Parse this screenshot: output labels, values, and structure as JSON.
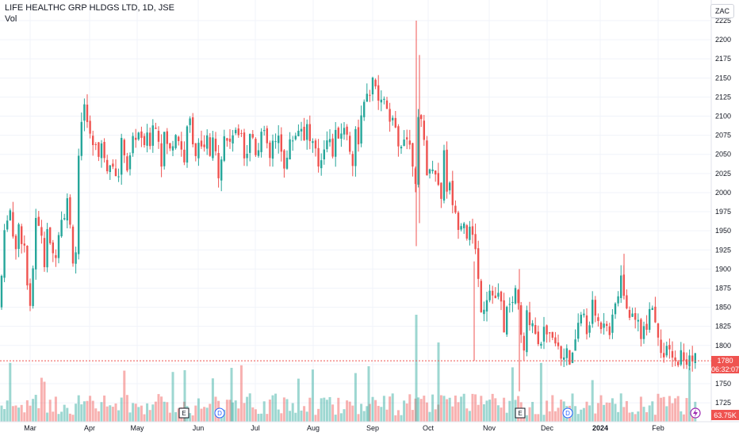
{
  "header": {
    "title": "LIFE HEALTHC GRP HLDGS LTD, 1D, JSE",
    "volume_label": "Vol"
  },
  "currency_button": "ZAC",
  "price_axis": {
    "ticks": [
      2225,
      2200,
      2175,
      2150,
      2125,
      2100,
      2075,
      2050,
      2025,
      2000,
      1975,
      1950,
      1925,
      1900,
      1875,
      1850,
      1825,
      1800,
      1775,
      1750,
      1725
    ],
    "current_price": "1780",
    "countdown": "06:32:07",
    "volume_value": "63.75K"
  },
  "time_axis": {
    "labels": [
      "Mar",
      "Apr",
      "May",
      "Jun",
      "Jul",
      "Aug",
      "Sep",
      "Oct",
      "Nov",
      "Dec",
      "2024",
      "Feb"
    ]
  },
  "events": [
    {
      "type": "earnings",
      "label": "E"
    },
    {
      "type": "dividend",
      "label": "D"
    },
    {
      "type": "earnings",
      "label": "E"
    },
    {
      "type": "dividend",
      "label": "D"
    }
  ],
  "colors": {
    "up": "#26a69a",
    "down": "#ef5350",
    "grid": "#f0f3fa",
    "text": "#131722"
  },
  "chart_data": {
    "type": "candlestick",
    "title": "LIFE HEALTHC GRP HLDGS LTD, 1D, JSE",
    "ylim": [
      1720,
      2230
    ],
    "anchors": [
      [
        0,
        1850
      ],
      [
        4,
        1930
      ],
      [
        8,
        1965
      ],
      [
        12,
        1985
      ],
      [
        16,
        1945
      ],
      [
        20,
        1930
      ],
      [
        24,
        1965
      ],
      [
        28,
        1915
      ],
      [
        32,
        1940
      ],
      [
        36,
        1850
      ],
      [
        40,
        1860
      ],
      [
        44,
        1965
      ],
      [
        48,
        1955
      ],
      [
        52,
        1950
      ],
      [
        56,
        1905
      ],
      [
        60,
        1950
      ],
      [
        64,
        1935
      ],
      [
        68,
        1905
      ],
      [
        72,
        1935
      ],
      [
        76,
        1970
      ],
      [
        80,
        1965
      ],
      [
        84,
        1995
      ],
      [
        88,
        1960
      ],
      [
        92,
        1915
      ],
      [
        96,
        1925
      ],
      [
        100,
        2070
      ],
      [
        104,
        2090
      ],
      [
        108,
        2120
      ],
      [
        112,
        2080
      ],
      [
        116,
        2060
      ],
      [
        120,
        2075
      ],
      [
        124,
        2045
      ],
      [
        128,
        2060
      ],
      [
        132,
        2050
      ],
      [
        136,
        2030
      ],
      [
        140,
        2050
      ],
      [
        144,
        2035
      ],
      [
        148,
        2000
      ],
      [
        152,
        2065
      ],
      [
        156,
        2060
      ],
      [
        160,
        2030
      ],
      [
        164,
        2045
      ],
      [
        168,
        2075
      ],
      [
        172,
        2070
      ],
      [
        176,
        2085
      ],
      [
        180,
        2050
      ],
      [
        184,
        2080
      ],
      [
        188,
        2055
      ],
      [
        192,
        2095
      ],
      [
        196,
        2085
      ],
      [
        200,
        2070
      ],
      [
        204,
        2040
      ],
      [
        208,
        2080
      ],
      [
        212,
        2060
      ],
      [
        216,
        2050
      ],
      [
        220,
        2080
      ],
      [
        224,
        2075
      ],
      [
        228,
        2060
      ],
      [
        232,
        2040
      ],
      [
        236,
        2080
      ],
      [
        240,
        2095
      ],
      [
        244,
        2065
      ],
      [
        248,
        2045
      ],
      [
        252,
        2070
      ],
      [
        256,
        2040
      ],
      [
        260,
        2080
      ],
      [
        264,
        2045
      ],
      [
        268,
        2065
      ],
      [
        272,
        2050
      ],
      [
        276,
        2025
      ],
      [
        280,
        2055
      ],
      [
        284,
        2080
      ],
      [
        288,
        2060
      ],
      [
        292,
        2080
      ],
      [
        296,
        2075
      ],
      [
        300,
        2075
      ],
      [
        304,
        2090
      ],
      [
        308,
        2050
      ],
      [
        312,
        2055
      ],
      [
        316,
        2080
      ],
      [
        320,
        2070
      ],
      [
        324,
        2045
      ],
      [
        328,
        2080
      ],
      [
        332,
        2075
      ],
      [
        336,
        2070
      ],
      [
        340,
        2040
      ],
      [
        344,
        2065
      ],
      [
        348,
        2060
      ],
      [
        352,
        2075
      ],
      [
        356,
        2050
      ],
      [
        360,
        2030
      ],
      [
        364,
        2060
      ],
      [
        368,
        2070
      ],
      [
        372,
        2075
      ],
      [
        376,
        2085
      ],
      [
        380,
        2085
      ],
      [
        384,
        2075
      ],
      [
        388,
        2090
      ],
      [
        392,
        2060
      ],
      [
        396,
        2065
      ],
      [
        400,
        2035
      ],
      [
        404,
        2040
      ],
      [
        408,
        2060
      ],
      [
        412,
        2075
      ],
      [
        416,
        2065
      ],
      [
        420,
        2050
      ],
      [
        424,
        2080
      ],
      [
        428,
        2075
      ],
      [
        432,
        2085
      ],
      [
        436,
        2080
      ],
      [
        440,
        2070
      ],
      [
        444,
        2030
      ],
      [
        448,
        2080
      ],
      [
        452,
        2070
      ],
      [
        456,
        2100
      ],
      [
        460,
        2115
      ],
      [
        464,
        2125
      ],
      [
        468,
        2140
      ],
      [
        472,
        2145
      ],
      [
        476,
        2125
      ],
      [
        480,
        2110
      ],
      [
        484,
        2130
      ],
      [
        488,
        2105
      ],
      [
        492,
        2085
      ],
      [
        496,
        2095
      ],
      [
        500,
        2070
      ],
      [
        504,
        2050
      ],
      [
        508,
        2080
      ],
      [
        512,
        2075
      ],
      [
        516,
        2065
      ],
      [
        520,
        2045
      ],
      [
        524,
        2020
      ],
      [
        528,
        2100
      ],
      [
        532,
        2085
      ],
      [
        536,
        2060
      ],
      [
        540,
        2010
      ],
      [
        544,
        2040
      ],
      [
        548,
        2035
      ],
      [
        552,
        2015
      ],
      [
        556,
        1985
      ],
      [
        560,
        2060
      ],
      [
        564,
        2000
      ],
      [
        568,
        2010
      ],
      [
        572,
        1980
      ],
      [
        576,
        1960
      ],
      [
        580,
        1960
      ],
      [
        584,
        1970
      ],
      [
        588,
        1945
      ],
      [
        592,
        1950
      ],
      [
        596,
        1940
      ],
      [
        600,
        1930
      ],
      [
        604,
        1875
      ],
      [
        608,
        1840
      ],
      [
        612,
        1860
      ],
      [
        616,
        1870
      ],
      [
        620,
        1880
      ],
      [
        624,
        1855
      ],
      [
        628,
        1870
      ],
      [
        632,
        1850
      ],
      [
        636,
        1820
      ],
      [
        640,
        1855
      ],
      [
        644,
        1850
      ],
      [
        648,
        1860
      ],
      [
        652,
        1885
      ],
      [
        656,
        1820
      ],
      [
        660,
        1780
      ],
      [
        664,
        1840
      ],
      [
        668,
        1835
      ],
      [
        672,
        1830
      ],
      [
        676,
        1815
      ],
      [
        680,
        1805
      ],
      [
        684,
        1810
      ],
      [
        688,
        1830
      ],
      [
        692,
        1805
      ],
      [
        696,
        1820
      ],
      [
        700,
        1810
      ],
      [
        704,
        1800
      ],
      [
        708,
        1785
      ],
      [
        712,
        1795
      ],
      [
        716,
        1785
      ],
      [
        720,
        1770
      ],
      [
        724,
        1800
      ],
      [
        728,
        1825
      ],
      [
        732,
        1840
      ],
      [
        736,
        1840
      ],
      [
        740,
        1815
      ],
      [
        744,
        1835
      ],
      [
        748,
        1855
      ],
      [
        752,
        1835
      ],
      [
        756,
        1825
      ],
      [
        760,
        1830
      ],
      [
        764,
        1840
      ],
      [
        768,
        1815
      ],
      [
        772,
        1830
      ],
      [
        776,
        1855
      ],
      [
        780,
        1870
      ],
      [
        784,
        1895
      ],
      [
        788,
        1845
      ],
      [
        792,
        1860
      ],
      [
        796,
        1825
      ],
      [
        800,
        1845
      ],
      [
        804,
        1835
      ],
      [
        808,
        1815
      ],
      [
        812,
        1820
      ],
      [
        816,
        1830
      ],
      [
        820,
        1860
      ],
      [
        824,
        1845
      ],
      [
        828,
        1825
      ],
      [
        832,
        1810
      ],
      [
        836,
        1780
      ],
      [
        840,
        1790
      ],
      [
        844,
        1795
      ],
      [
        848,
        1780
      ],
      [
        852,
        1775
      ],
      [
        856,
        1785
      ],
      [
        860,
        1790
      ],
      [
        864,
        1775
      ],
      [
        868,
        1780
      ],
      [
        872,
        1785
      ],
      [
        876,
        1790
      ],
      [
        880,
        1780
      ]
    ]
  }
}
